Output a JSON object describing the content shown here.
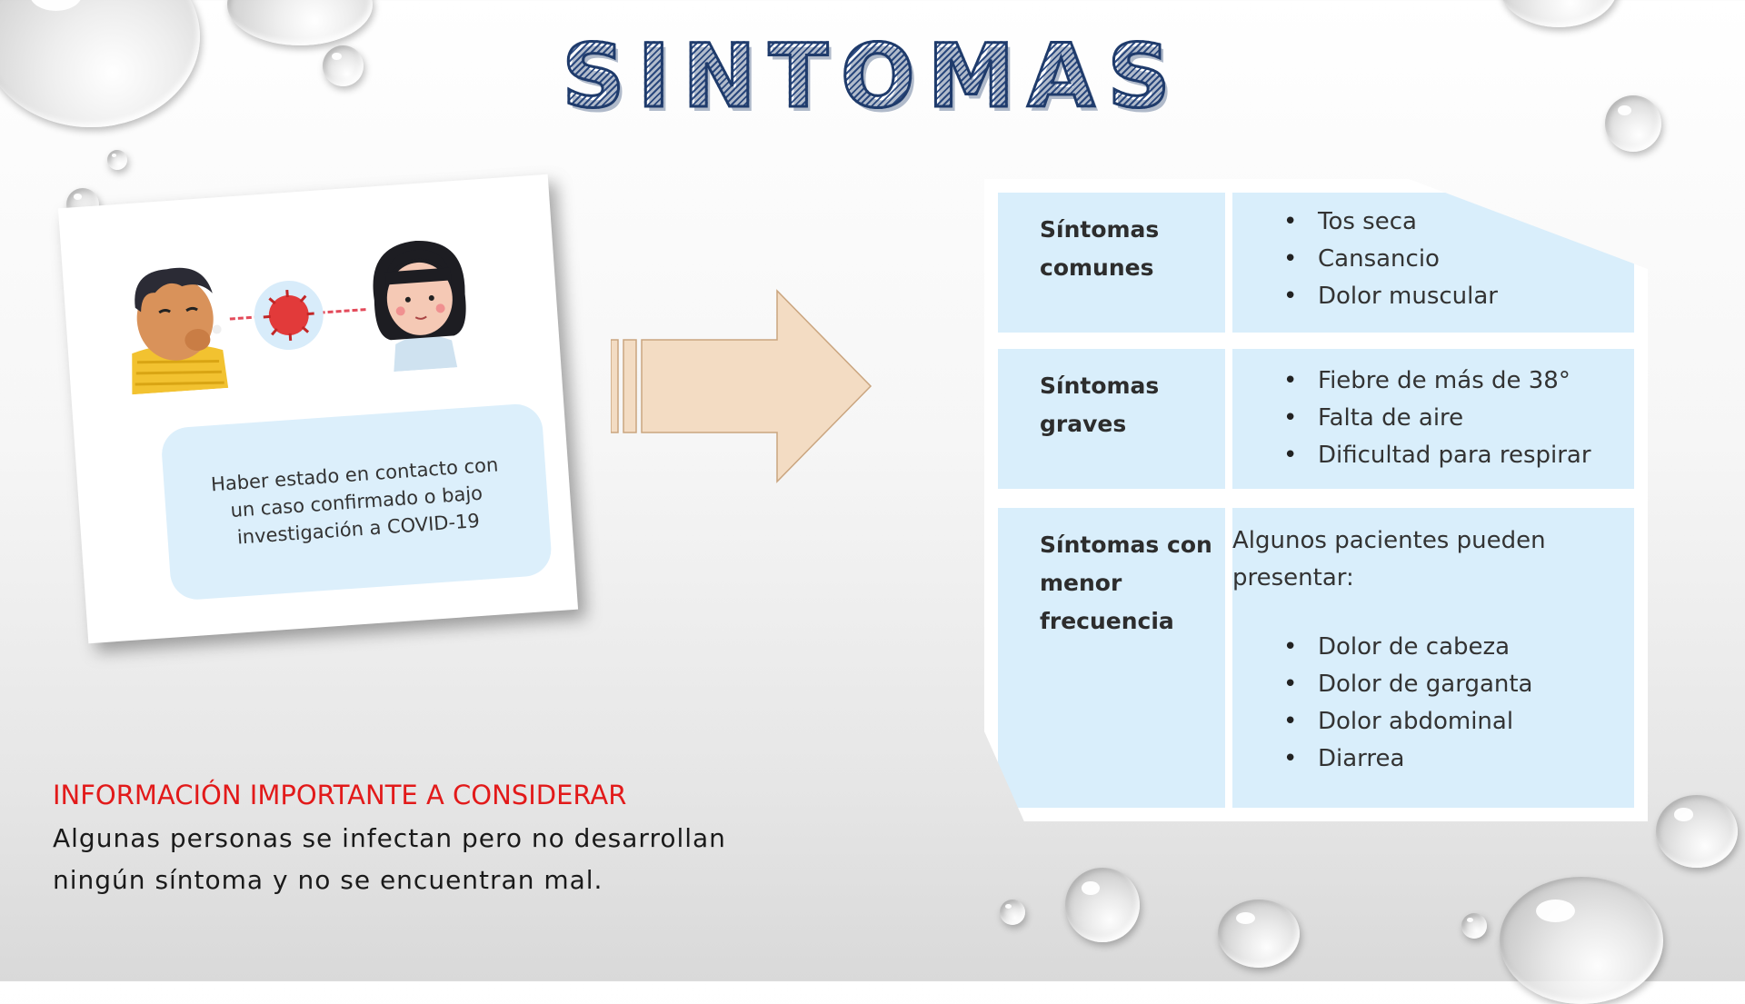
{
  "title": "SINTOMAS",
  "card": {
    "caption": "Haber estado en contacto con un caso confirmado o bajo investigación a COVID-19"
  },
  "table": {
    "rows": [
      {
        "label": "Síntomas comunes",
        "items": [
          "Tos seca",
          "Cansancio",
          "Dolor muscular"
        ]
      },
      {
        "label": "Síntomas graves",
        "items": [
          "Fiebre de más de 38°",
          "Falta de aire",
          "Dificultad para respirar"
        ]
      },
      {
        "label": "Síntomas con menor frecuencia",
        "intro": "Algunos pacientes pueden presentar:",
        "items": [
          "Dolor de cabeza",
          "Dolor de garganta",
          "Dolor abdominal",
          "Diarrea"
        ]
      }
    ]
  },
  "info": {
    "title": "INFORMACIÓN IMPORTANTE A CONSIDERAR",
    "text": "Algunas personas se infectan pero no desarrollan ningún síntoma y no se encuentran mal."
  },
  "colors": {
    "title_stroke": "#1f3b6b",
    "cell_bg": "#d9eefb",
    "arrow_fill": "#f3dcc3",
    "info_title": "#e21a1a"
  }
}
